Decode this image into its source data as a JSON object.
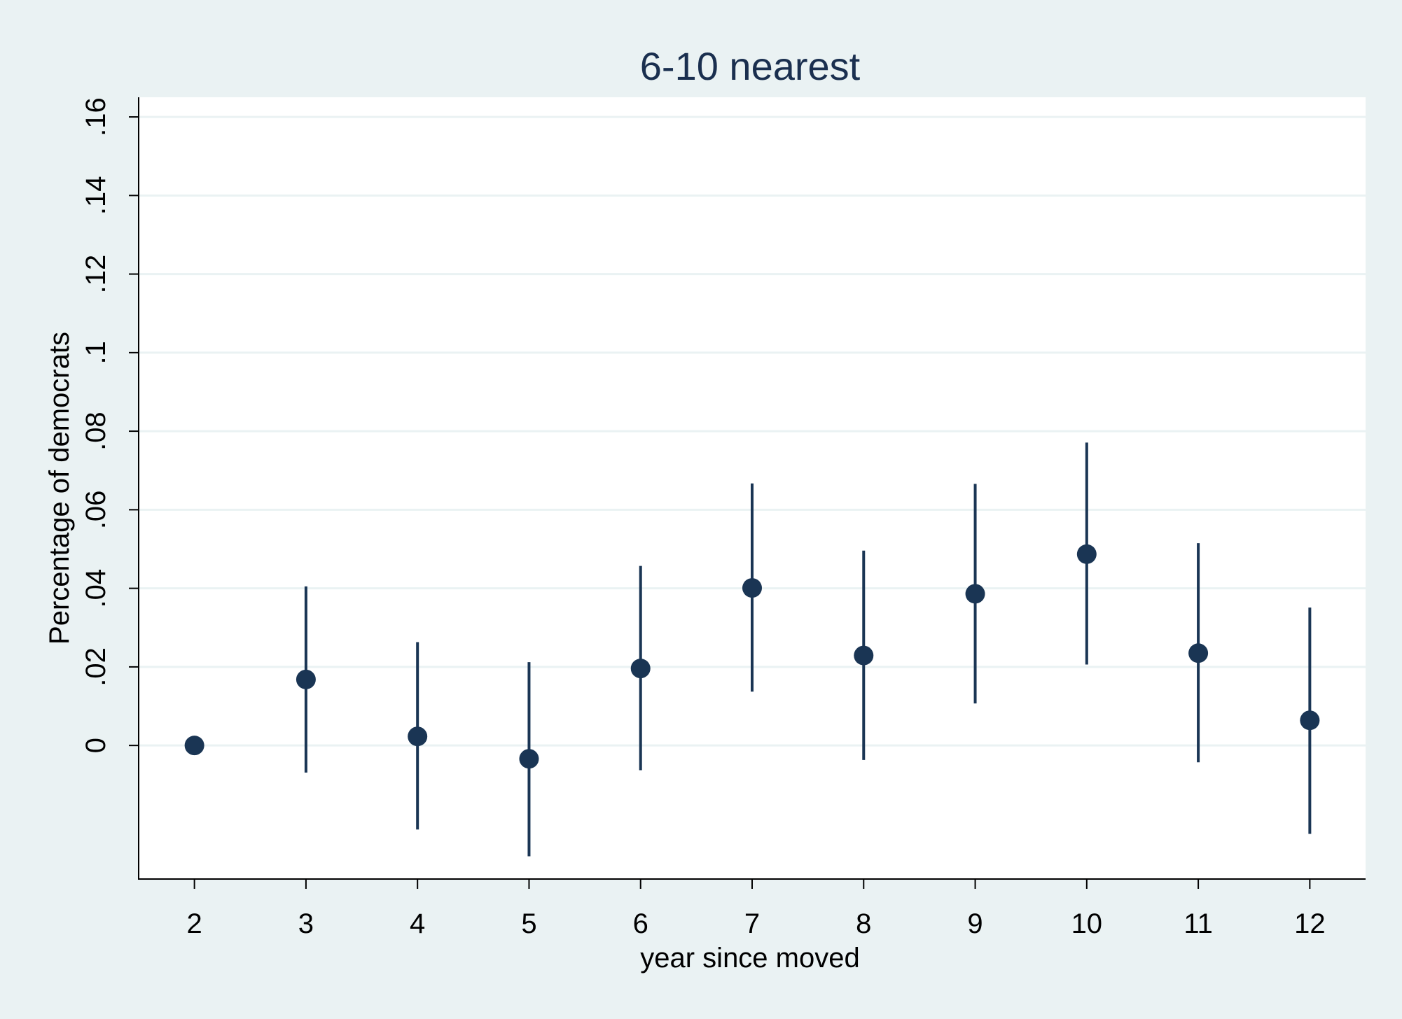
{
  "chart_data": {
    "type": "scatter",
    "title": "6-10 nearest",
    "xlabel": "year since moved",
    "ylabel": "Percentage of democrats",
    "x": [
      2,
      3,
      4,
      5,
      6,
      7,
      8,
      9,
      10,
      11,
      12
    ],
    "series": [
      {
        "values": [
          0.0,
          0.0168,
          0.0023,
          -0.0034,
          0.0196,
          0.0401,
          0.0229,
          0.0386,
          0.0487,
          0.0235,
          0.0064
        ],
        "ci_lower": [
          0.0,
          -0.0069,
          -0.0214,
          -0.0282,
          -0.0063,
          0.0137,
          -0.0037,
          0.0107,
          0.0206,
          -0.0043,
          -0.0225
        ],
        "ci_upper": [
          0.0,
          0.0405,
          0.0263,
          0.0212,
          0.0457,
          0.0667,
          0.0496,
          0.0666,
          0.0771,
          0.0515,
          0.0351
        ]
      }
    ],
    "xticks": [
      "2",
      "3",
      "4",
      "5",
      "6",
      "7",
      "8",
      "9",
      "10",
      "11",
      "12"
    ],
    "yticks": [
      0,
      0.02,
      0.04,
      0.06,
      0.08,
      0.1,
      0.12,
      0.14,
      0.16
    ],
    "ytick_labels": [
      "0",
      ".02",
      ".04",
      ".06",
      ".08",
      ".1",
      ".12",
      ".14",
      ".16"
    ],
    "xlim": [
      1.5,
      12.5
    ],
    "ylim": [
      -0.034,
      0.165
    ],
    "grid": "horizontal",
    "colors": {
      "background": "#eaf2f3",
      "plot_area": "#ffffff",
      "marker": "#1a3554",
      "gridline": "#eaf2f3",
      "title": "#1a2f4f"
    }
  }
}
